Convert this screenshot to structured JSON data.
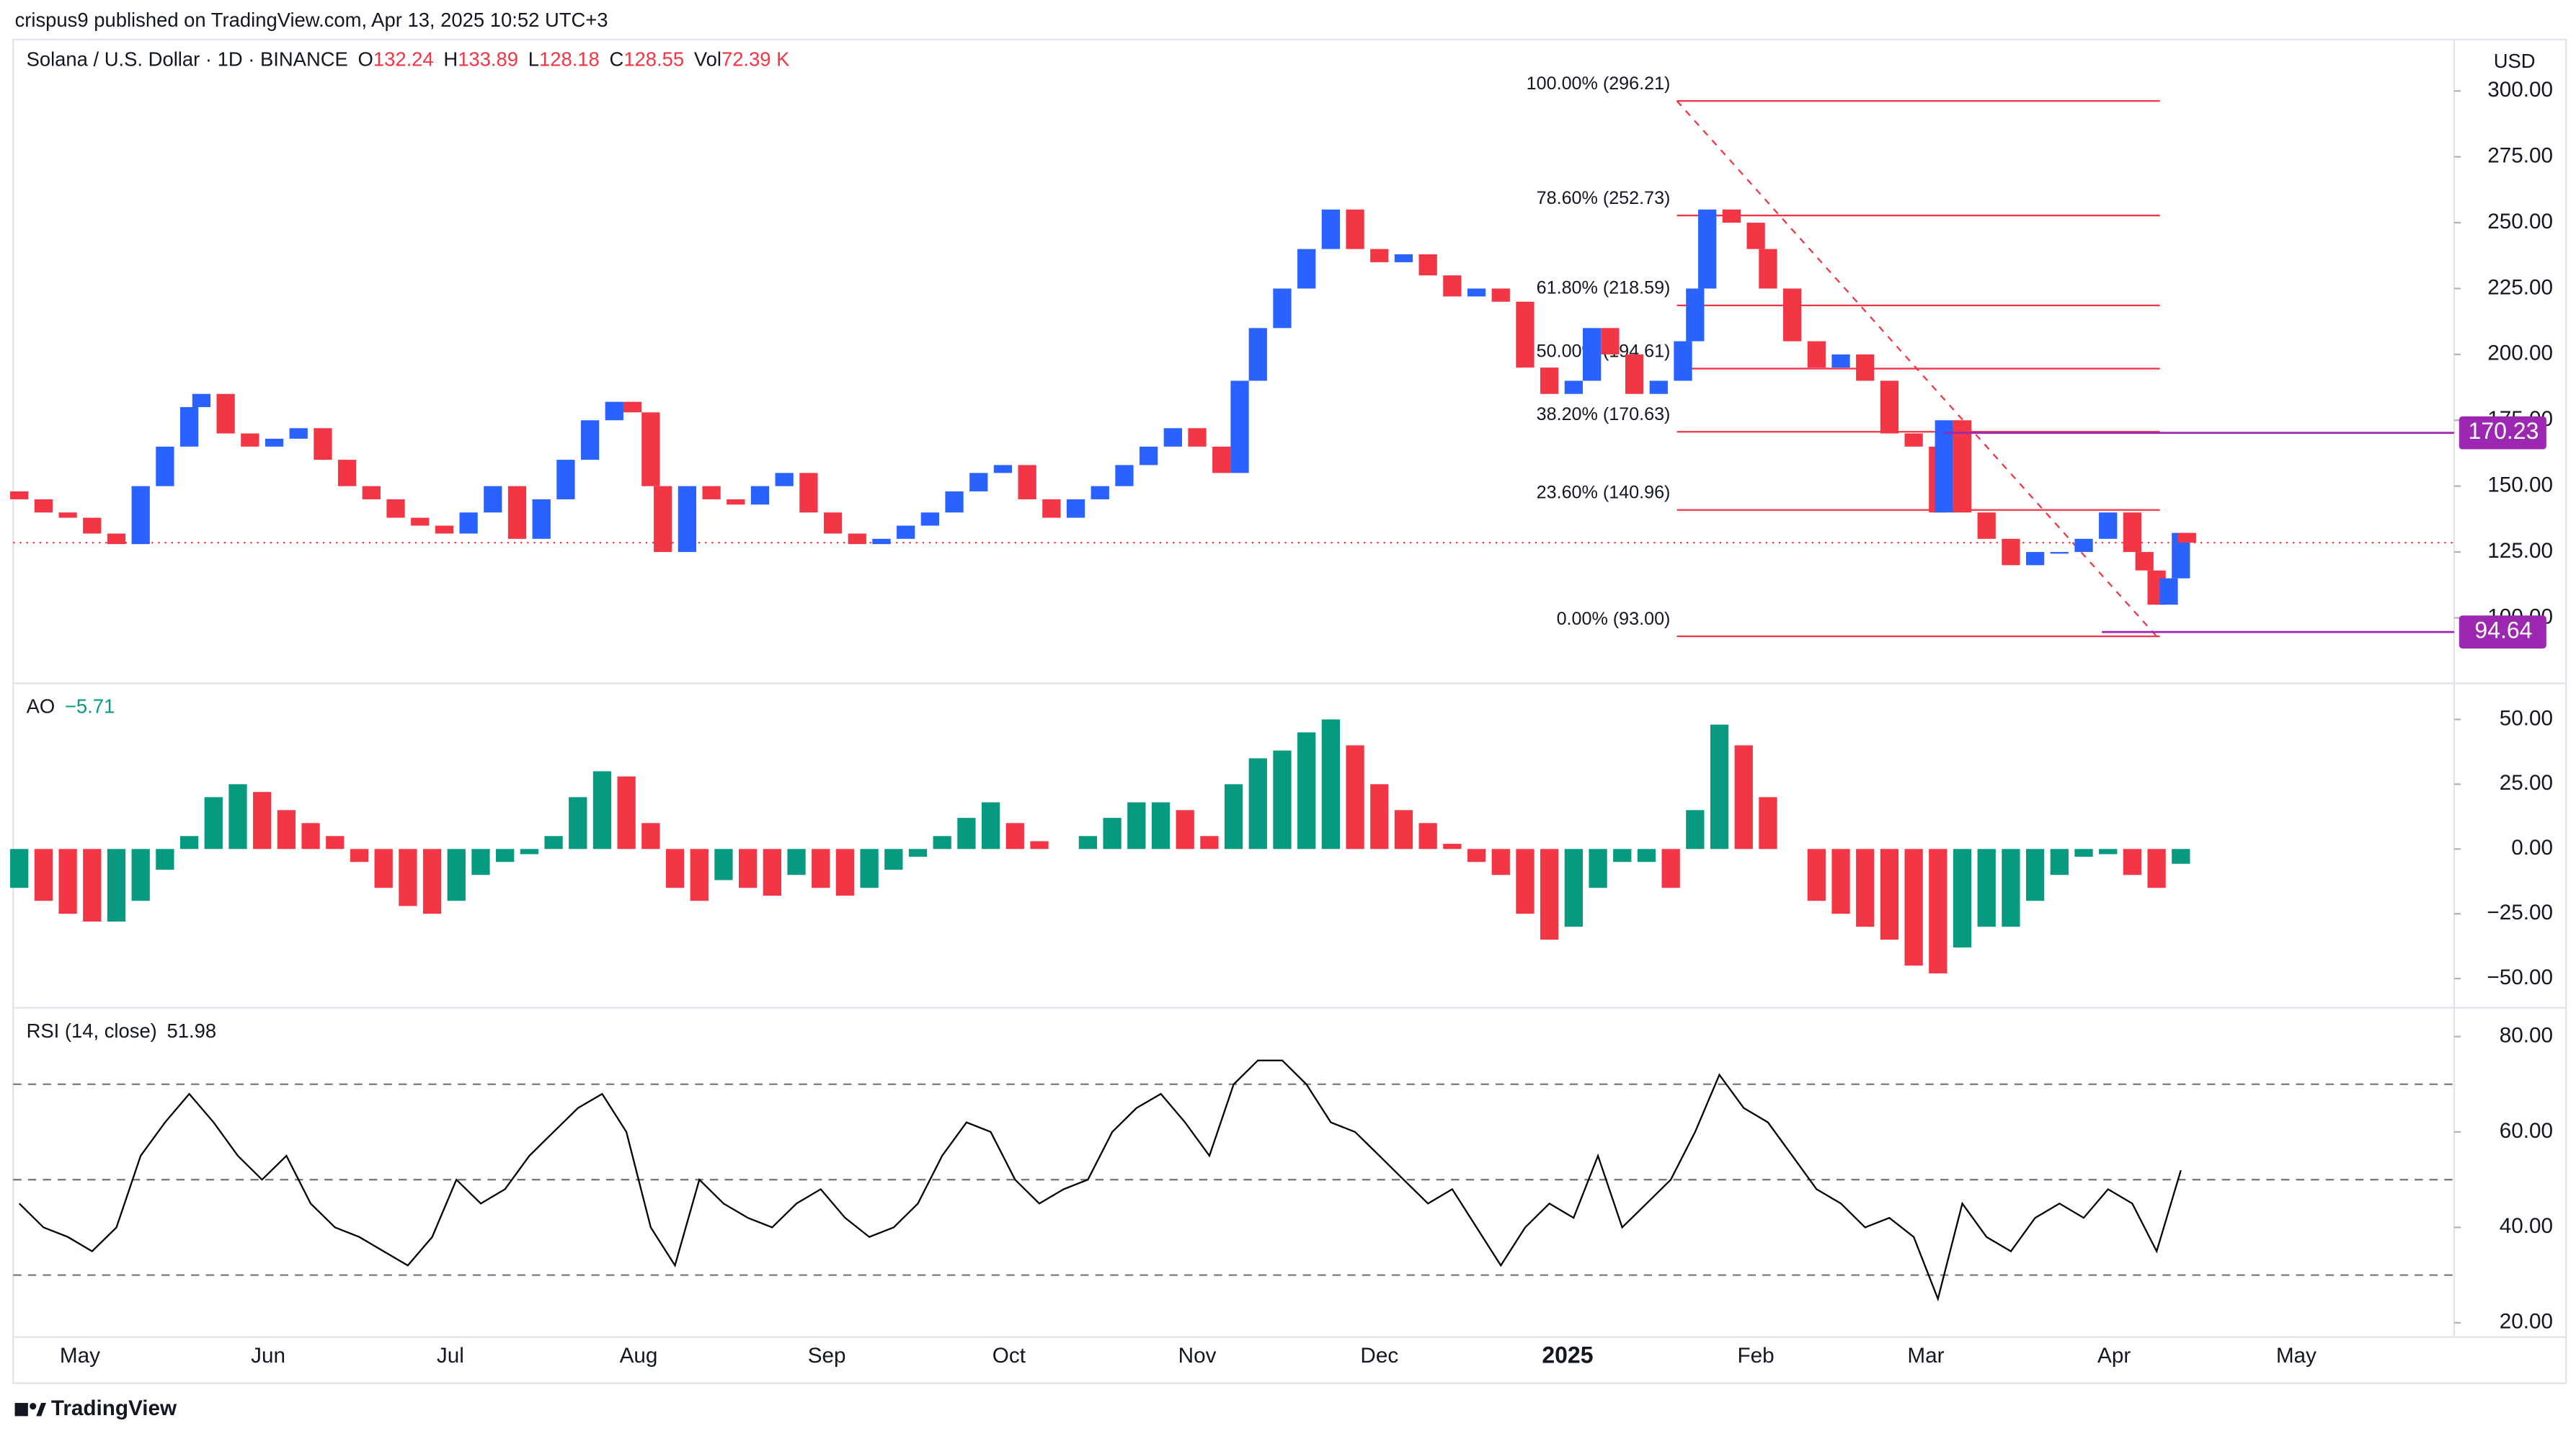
{
  "header": {
    "publisher": "crispus9 published on TradingView.com, Apr 13, 2025 10:52 UTC+3",
    "symbol": "Solana / U.S. Dollar · 1D · BINANCE",
    "ohlc": [
      {
        "label": "O",
        "value": 132.24
      },
      {
        "label": "H",
        "value": 133.89
      },
      {
        "label": "L",
        "value": 128.18
      },
      {
        "label": "C",
        "value": 128.55
      },
      {
        "label": "Vol",
        "value": 72390,
        "value_label": "72.39 K"
      }
    ],
    "currency": "USD",
    "footer": "TradingView"
  },
  "chart_data": [
    {
      "type": "candlestick",
      "up_color": "#2962ff",
      "down_color": "#f23645",
      "xlim": [
        -11,
        391
      ],
      "xticks": [
        {
          "value": 0,
          "label": "May"
        },
        {
          "value": 31,
          "label": "Jun"
        },
        {
          "value": 61,
          "label": "Jul"
        },
        {
          "value": 92,
          "label": "Aug"
        },
        {
          "value": 123,
          "label": "Sep"
        },
        {
          "value": 153,
          "label": "Oct"
        },
        {
          "value": 184,
          "label": "Nov"
        },
        {
          "value": 214,
          "label": "Dec"
        },
        {
          "value": 245,
          "label": "2025"
        },
        {
          "value": 276,
          "label": "Feb"
        },
        {
          "value": 304,
          "label": "Mar"
        },
        {
          "value": 335,
          "label": "Apr"
        },
        {
          "value": 365,
          "label": "May"
        }
      ],
      "ylim": [
        77,
        317
      ],
      "yticks": [
        {
          "value": 100,
          "label": "100.00"
        },
        {
          "value": 125,
          "label": "125.00"
        },
        {
          "value": 150,
          "label": "150.00"
        },
        {
          "value": 175,
          "label": "175.00"
        },
        {
          "value": 200,
          "label": "200.00"
        },
        {
          "value": 225,
          "label": "225.00"
        },
        {
          "value": 250,
          "label": "250.00"
        },
        {
          "value": 275,
          "label": "275.00"
        },
        {
          "value": 300,
          "label": "300.00"
        }
      ],
      "x": [
        -10,
        -6,
        -2,
        2,
        6,
        10,
        14,
        18,
        20,
        24,
        28,
        32,
        36,
        40,
        44,
        48,
        52,
        56,
        60,
        64,
        68,
        72,
        76,
        80,
        84,
        88,
        91,
        94,
        96,
        100,
        104,
        108,
        112,
        116,
        120,
        124,
        128,
        132,
        136,
        140,
        144,
        148,
        152,
        156,
        160,
        164,
        168,
        172,
        176,
        180,
        184,
        188,
        191,
        194,
        198,
        202,
        206,
        210,
        214,
        218,
        222,
        226,
        230,
        234,
        238,
        242,
        246,
        249,
        252,
        256,
        260,
        264,
        266,
        268,
        272,
        276,
        278,
        282,
        286,
        290,
        294,
        298,
        302,
        306,
        307,
        310,
        314,
        318,
        322,
        326,
        330,
        334,
        338,
        340,
        342,
        344,
        346,
        347
      ],
      "open": [
        148,
        145,
        140,
        138,
        132,
        128,
        150,
        165,
        180,
        185,
        170,
        165,
        168,
        172,
        160,
        150,
        145,
        138,
        135,
        132,
        140,
        150,
        130,
        145,
        160,
        175,
        182,
        178,
        150,
        125,
        150,
        145,
        143,
        150,
        155,
        140,
        132,
        128,
        130,
        135,
        140,
        148,
        155,
        158,
        145,
        138,
        145,
        150,
        158,
        165,
        172,
        165,
        155,
        190,
        210,
        225,
        240,
        255,
        240,
        235,
        238,
        230,
        222,
        225,
        220,
        195,
        185,
        190,
        210,
        200,
        185,
        190,
        205,
        225,
        255,
        250,
        240,
        225,
        205,
        195,
        200,
        190,
        170,
        165,
        140,
        175,
        140,
        130,
        120,
        125,
        125,
        130,
        140,
        125,
        118,
        105,
        115,
        132.24
      ],
      "close": [
        145,
        140,
        138,
        132,
        128,
        150,
        165,
        180,
        185,
        170,
        165,
        168,
        172,
        160,
        150,
        145,
        138,
        135,
        132,
        140,
        150,
        130,
        145,
        160,
        175,
        182,
        178,
        150,
        125,
        150,
        145,
        143,
        150,
        155,
        140,
        132,
        128,
        130,
        135,
        140,
        148,
        155,
        158,
        145,
        138,
        145,
        150,
        158,
        165,
        172,
        165,
        155,
        190,
        210,
        225,
        240,
        255,
        240,
        235,
        238,
        230,
        222,
        225,
        220,
        195,
        185,
        190,
        210,
        200,
        185,
        190,
        205,
        225,
        255,
        250,
        240,
        225,
        205,
        195,
        200,
        190,
        170,
        165,
        140,
        175,
        140,
        130,
        120,
        125,
        125,
        130,
        140,
        125,
        118,
        105,
        115,
        132.24,
        128.55
      ],
      "fib": {
        "color": "#f23645",
        "x_start": 263,
        "x_end": 342,
        "levels": [
          {
            "value": 296.21,
            "label": "100.00% (296.21)"
          },
          {
            "value": 252.73,
            "label": "78.60% (252.73)"
          },
          {
            "value": 218.59,
            "label": "61.80% (218.59)"
          },
          {
            "value": 194.61,
            "label": "50.00% (194.61)"
          },
          {
            "value": 170.63,
            "label": "38.20% (170.63)"
          },
          {
            "value": 140.96,
            "label": "23.60% (140.96)"
          },
          {
            "value": 93.0,
            "label": "0.00% (93.00)"
          }
        ]
      },
      "price_labels": {
        "color": "#9c27b0",
        "items": [
          {
            "value": 170.23,
            "x_start": 307
          },
          {
            "value": 94.64,
            "x_start": 333
          }
        ]
      }
    },
    {
      "type": "bar",
      "title": "AO",
      "value_label": "−5.71",
      "up_color": "#089981",
      "down_color": "#f23645",
      "ylim": [
        -60,
        62
      ],
      "yticks": [
        {
          "value": -50,
          "label": "−50.00"
        },
        {
          "value": -25,
          "label": "−25.00"
        },
        {
          "value": 0,
          "label": "0.00"
        },
        {
          "value": 25,
          "label": "25.00"
        },
        {
          "value": 50,
          "label": "50.00"
        }
      ],
      "x": [
        -10,
        -6,
        -2,
        2,
        6,
        10,
        14,
        18,
        22,
        26,
        30,
        34,
        38,
        42,
        46,
        50,
        54,
        58,
        62,
        66,
        70,
        74,
        78,
        82,
        86,
        90,
        94,
        98,
        102,
        106,
        110,
        114,
        118,
        122,
        126,
        130,
        134,
        138,
        142,
        146,
        150,
        154,
        158,
        162,
        166,
        170,
        174,
        178,
        182,
        186,
        190,
        194,
        198,
        202,
        206,
        210,
        214,
        218,
        222,
        226,
        230,
        234,
        238,
        242,
        246,
        250,
        254,
        258,
        262,
        266,
        270,
        274,
        278,
        282,
        286,
        290,
        294,
        298,
        302,
        306,
        310,
        314,
        318,
        322,
        326,
        330,
        334,
        338,
        342,
        346
      ],
      "values": [
        -15,
        -20,
        -25,
        -28,
        -28,
        -20,
        -8,
        5,
        20,
        25,
        22,
        15,
        10,
        5,
        -5,
        -15,
        -22,
        -25,
        -20,
        -10,
        -5,
        -2,
        5,
        20,
        30,
        28,
        10,
        -15,
        -20,
        -12,
        -15,
        -18,
        -10,
        -15,
        -18,
        -15,
        -8,
        -3,
        5,
        12,
        18,
        10,
        3,
        0,
        5,
        12,
        18,
        18,
        15,
        5,
        25,
        35,
        38,
        45,
        50,
        40,
        25,
        15,
        10,
        2,
        -5,
        -10,
        -25,
        -35,
        -30,
        -15,
        -5,
        -5,
        -15,
        15,
        48,
        40,
        20,
        0,
        -20,
        -25,
        -30,
        -35,
        -45,
        -48,
        -38,
        -30,
        -30,
        -20,
        -10,
        -3,
        -2,
        -10,
        -15,
        -5.71
      ]
    },
    {
      "type": "line",
      "title": "RSI (14, close)",
      "color": "#000000",
      "bands": [
        30,
        50,
        70
      ],
      "ylim": [
        17,
        85
      ],
      "yticks": [
        {
          "value": 20,
          "label": "20.00"
        },
        {
          "value": 40,
          "label": "40.00"
        },
        {
          "value": 60,
          "label": "60.00"
        },
        {
          "value": 80,
          "label": "80.00"
        }
      ],
      "x": [
        -10,
        -6,
        -2,
        2,
        6,
        10,
        14,
        18,
        22,
        26,
        30,
        34,
        38,
        42,
        46,
        50,
        54,
        58,
        62,
        66,
        70,
        74,
        78,
        82,
        86,
        90,
        94,
        98,
        102,
        106,
        110,
        114,
        118,
        122,
        126,
        130,
        134,
        138,
        142,
        146,
        150,
        154,
        158,
        162,
        166,
        170,
        174,
        178,
        182,
        186,
        190,
        194,
        198,
        202,
        206,
        210,
        214,
        218,
        222,
        226,
        230,
        234,
        238,
        242,
        246,
        250,
        254,
        258,
        262,
        266,
        270,
        274,
        278,
        282,
        286,
        290,
        294,
        298,
        302,
        306,
        310,
        314,
        318,
        322,
        326,
        330,
        334,
        338,
        342,
        346
      ],
      "values": [
        45,
        40,
        38,
        35,
        40,
        55,
        62,
        68,
        62,
        55,
        50,
        55,
        45,
        40,
        38,
        35,
        32,
        38,
        50,
        45,
        48,
        55,
        60,
        65,
        68,
        60,
        40,
        32,
        50,
        45,
        42,
        40,
        45,
        48,
        42,
        38,
        40,
        45,
        55,
        62,
        60,
        50,
        45,
        48,
        50,
        60,
        65,
        68,
        62,
        55,
        70,
        75,
        75,
        70,
        62,
        60,
        55,
        50,
        45,
        48,
        40,
        32,
        40,
        45,
        42,
        55,
        40,
        45,
        50,
        60,
        72,
        65,
        62,
        55,
        48,
        45,
        40,
        42,
        38,
        25,
        45,
        38,
        35,
        42,
        45,
        42,
        48,
        45,
        35,
        51.98
      ]
    }
  ]
}
